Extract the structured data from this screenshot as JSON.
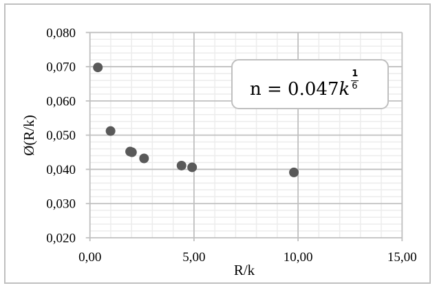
{
  "chart_data": {
    "type": "scatter",
    "title": "",
    "xlabel": "R/k",
    "ylabel": "Ø(R/k)",
    "xlim": [
      0,
      15
    ],
    "ylim": [
      0.02,
      0.08
    ],
    "x_ticks": [
      "0,00",
      "5,00",
      "10,00",
      "15,00"
    ],
    "y_ticks": [
      "0,020",
      "0,030",
      "0,040",
      "0,050",
      "0,060",
      "0,070",
      "0,080"
    ],
    "grid": {
      "major": true,
      "minor": true,
      "x_major_step": 5,
      "x_minor_step": 1,
      "y_major_step": 0.01,
      "y_minor_step": 0.002
    },
    "legend": null,
    "series": [
      {
        "name": "Ø(R/k)",
        "color": "#595959",
        "points": [
          {
            "x": 0.38,
            "y": 0.0698
          },
          {
            "x": 0.99,
            "y": 0.0512
          },
          {
            "x": 1.93,
            "y": 0.0452
          },
          {
            "x": 2.02,
            "y": 0.045
          },
          {
            "x": 2.6,
            "y": 0.0432
          },
          {
            "x": 4.4,
            "y": 0.0411
          },
          {
            "x": 4.91,
            "y": 0.0406
          },
          {
            "x": 9.8,
            "y": 0.0391
          }
        ]
      }
    ],
    "annotations": [
      {
        "text": "n = 0.047k^(1/6)",
        "position": "upper-right"
      }
    ]
  },
  "annotation": {
    "lhs": "n = 0.047",
    "var": "k",
    "exp_num": "1",
    "exp_den": "6"
  },
  "colors": {
    "frame": "#bfbfbf",
    "major_grid": "#bfbfbf",
    "minor_grid": "#ececec",
    "marker": "#595959"
  }
}
